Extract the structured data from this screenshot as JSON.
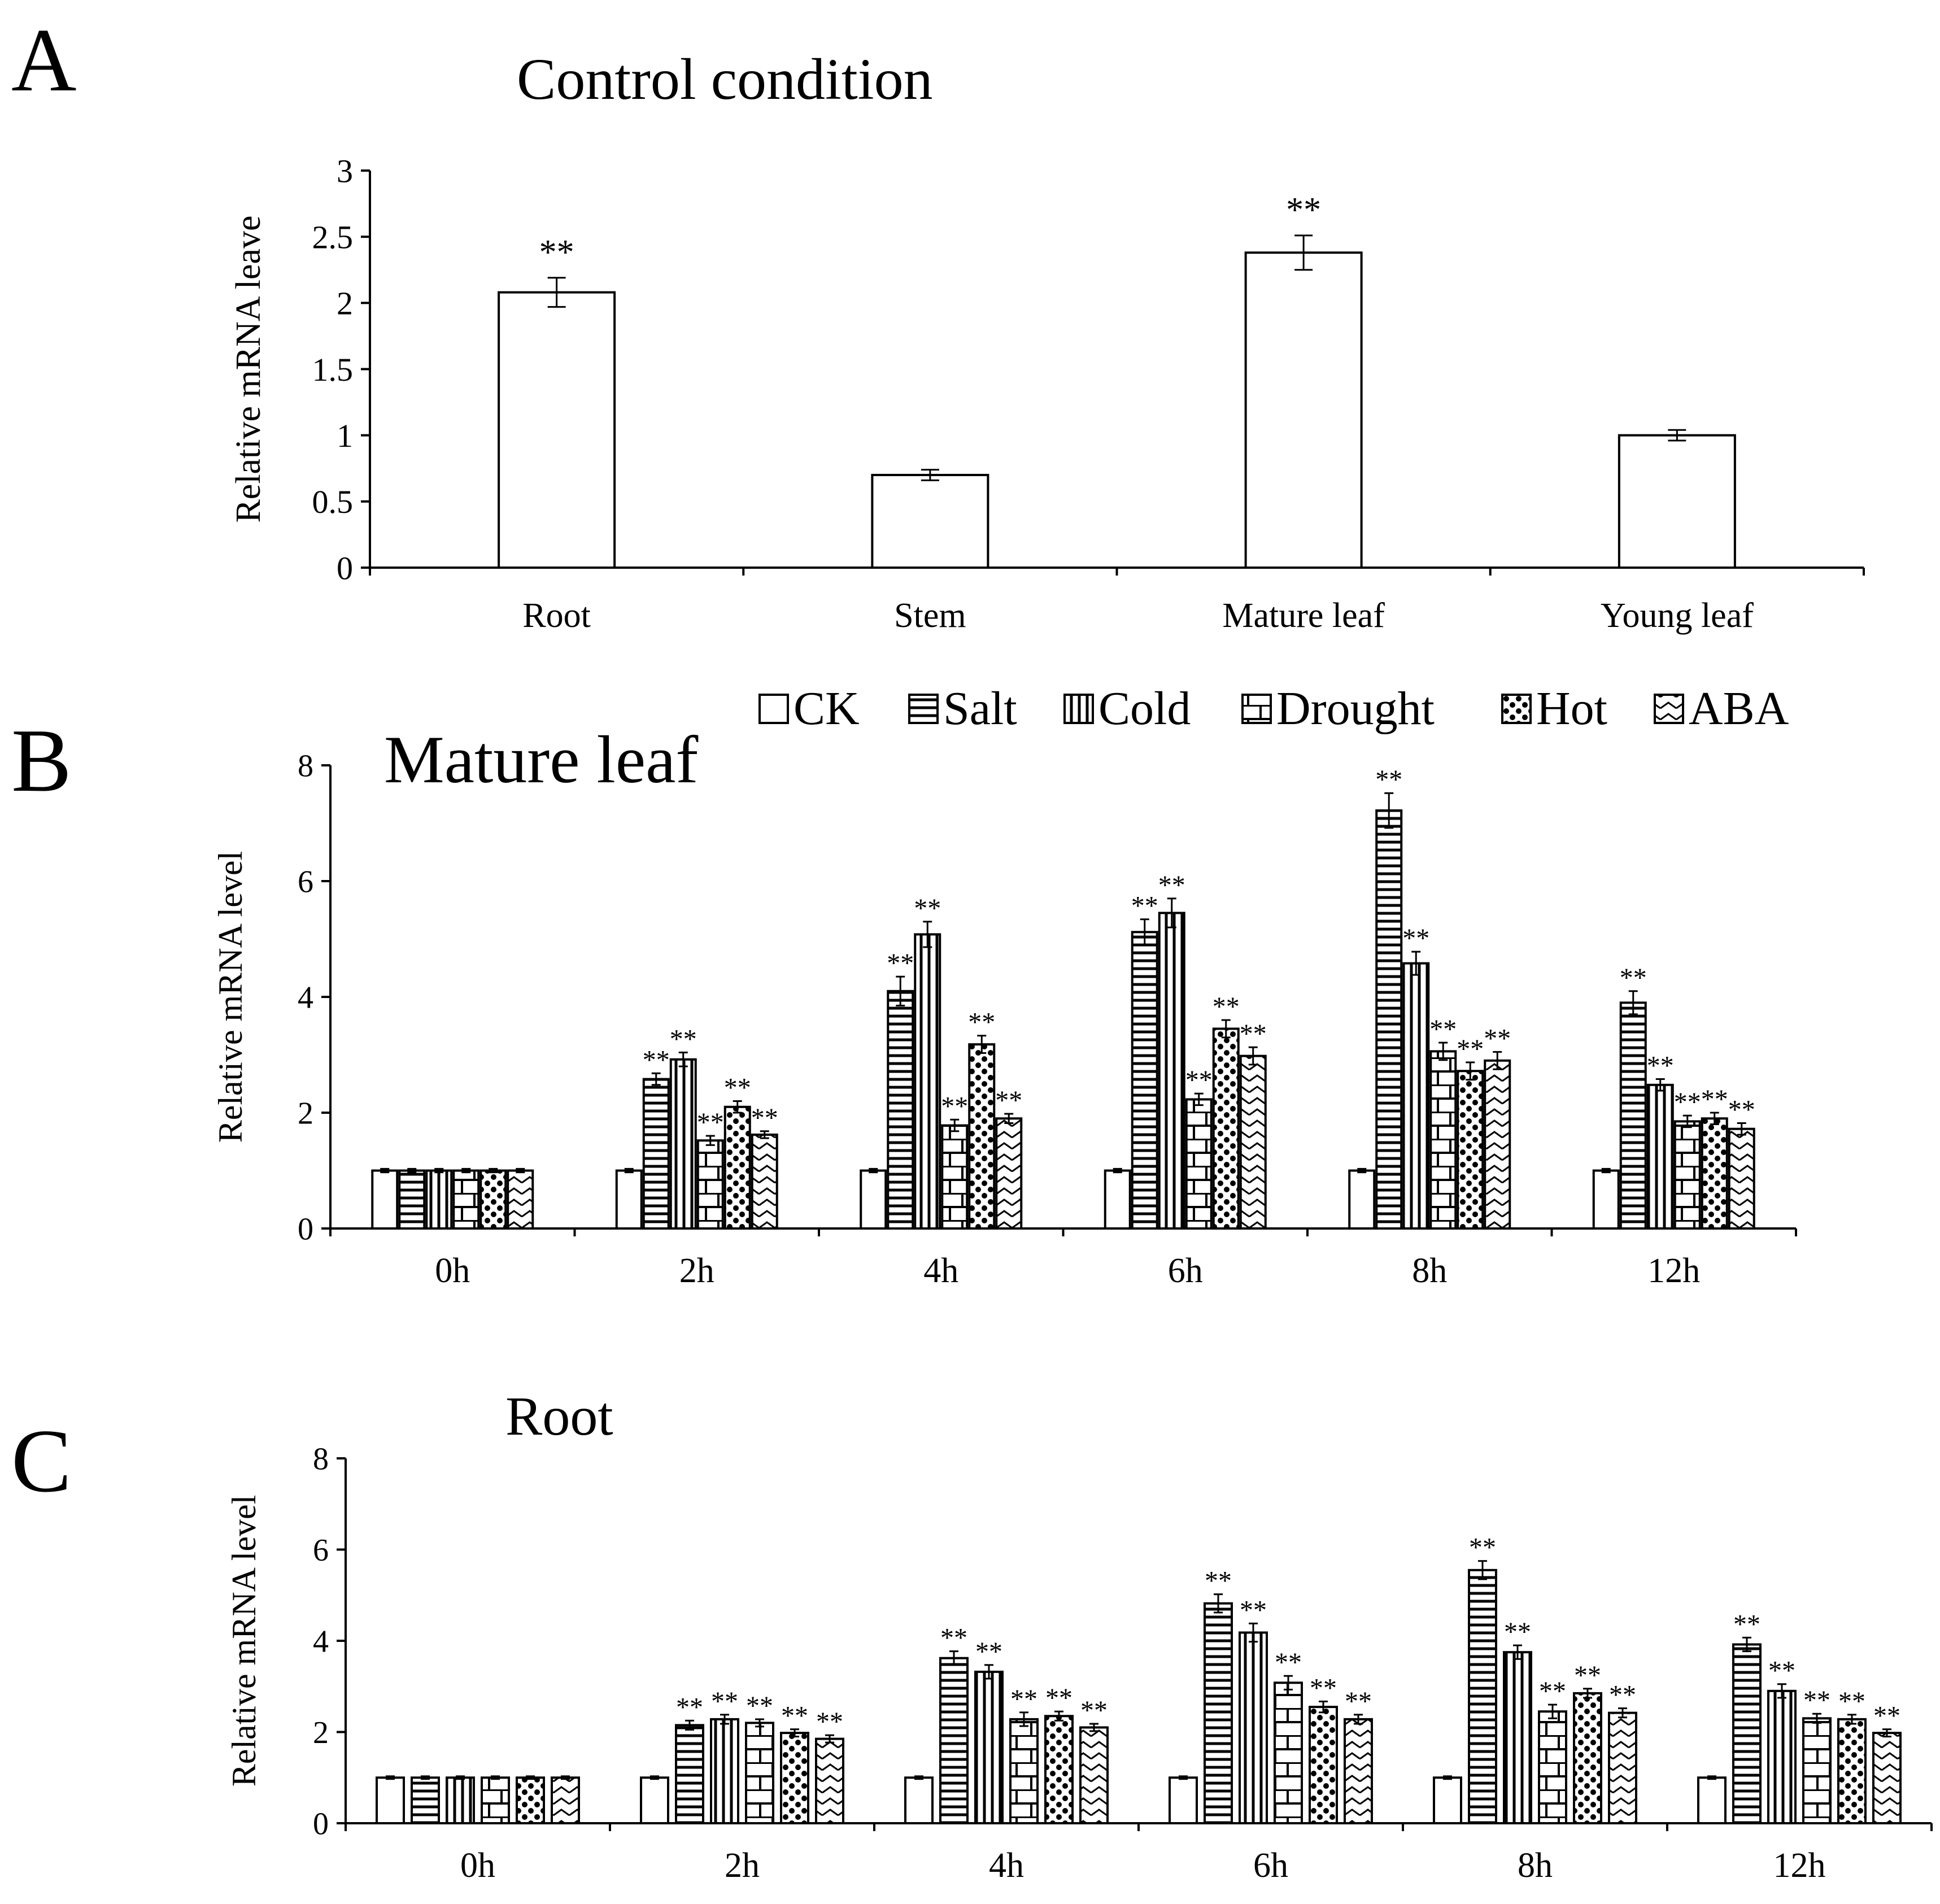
{
  "chart_data": [
    {
      "panel": "A",
      "type": "bar",
      "title": "Control condition",
      "ylabel": "Relative mRNA leave",
      "xlabel": "",
      "ylim": [
        0,
        3
      ],
      "yticks": [
        "0",
        "0.5",
        "1",
        "1.5",
        "2",
        "2.5",
        "3"
      ],
      "categories": [
        "Root",
        "Stem",
        "Mature leaf",
        "Young leaf"
      ],
      "values": [
        2.08,
        0.7,
        2.38,
        1.0
      ],
      "errors": [
        0.11,
        0.04,
        0.13,
        0.04
      ],
      "significance": [
        "**",
        "",
        "**",
        ""
      ]
    },
    {
      "panel": "B",
      "type": "bar",
      "title": "Mature leaf",
      "ylabel": "Relative mRNA level",
      "xlabel": "",
      "ylim": [
        0,
        8
      ],
      "yticks": [
        "0",
        "2",
        "4",
        "6",
        "8"
      ],
      "categories": [
        "0h",
        "2h",
        "4h",
        "6h",
        "8h",
        "12h"
      ],
      "legend_position": "top",
      "series": [
        {
          "name": "CK",
          "pattern": "plain",
          "values": [
            1,
            1,
            1,
            1,
            1,
            1
          ],
          "errors": [
            0.03,
            0.03,
            0.03,
            0.03,
            0.03,
            0.03
          ],
          "significance": [
            "",
            "",
            "",
            "",
            "",
            ""
          ]
        },
        {
          "name": "Salt",
          "pattern": "hlines",
          "values": [
            1,
            2.58,
            4.1,
            5.12,
            7.22,
            3.9
          ],
          "errors": [
            0.03,
            0.1,
            0.25,
            0.22,
            0.3,
            0.2
          ],
          "significance": [
            "",
            "**",
            "**",
            "**",
            "**",
            "**"
          ]
        },
        {
          "name": "Cold",
          "pattern": "vlines",
          "values": [
            1,
            2.92,
            5.08,
            5.45,
            4.58,
            2.48
          ],
          "errors": [
            0.03,
            0.12,
            0.22,
            0.25,
            0.2,
            0.1
          ],
          "significance": [
            "",
            "**",
            "**",
            "**",
            "**",
            "**"
          ]
        },
        {
          "name": "Drought",
          "pattern": "brick",
          "values": [
            1,
            1.52,
            1.78,
            2.23,
            3.06,
            1.85
          ],
          "errors": [
            0.03,
            0.08,
            0.1,
            0.1,
            0.15,
            0.1
          ],
          "significance": [
            "",
            "**",
            "**",
            "**",
            "**",
            "**"
          ]
        },
        {
          "name": "Hot",
          "pattern": "dots",
          "values": [
            1,
            2.1,
            3.18,
            3.45,
            2.72,
            1.9
          ],
          "errors": [
            0.03,
            0.1,
            0.15,
            0.15,
            0.15,
            0.1
          ],
          "significance": [
            "",
            "**",
            "**",
            "**",
            "**",
            "**"
          ]
        },
        {
          "name": "ABA",
          "pattern": "zigzag",
          "values": [
            1,
            1.62,
            1.9,
            2.98,
            2.9,
            1.72
          ],
          "errors": [
            0.03,
            0.06,
            0.08,
            0.15,
            0.15,
            0.1
          ],
          "significance": [
            "",
            "**",
            "**",
            "**",
            "**",
            "**"
          ]
        }
      ]
    },
    {
      "panel": "C",
      "type": "bar",
      "title": "Root",
      "ylabel": "Relative mRNA level",
      "xlabel": "",
      "ylim": [
        0,
        8
      ],
      "yticks": [
        "0",
        "2",
        "4",
        "6",
        "8"
      ],
      "categories": [
        "0h",
        "2h",
        "4h",
        "6h",
        "8h",
        "12h"
      ],
      "series": [
        {
          "name": "CK",
          "pattern": "plain",
          "values": [
            1,
            1,
            1,
            1,
            1,
            1
          ],
          "errors": [
            0.03,
            0.03,
            0.03,
            0.03,
            0.03,
            0.03
          ],
          "significance": [
            "",
            "",
            "",
            "",
            "",
            ""
          ]
        },
        {
          "name": "Salt",
          "pattern": "hlines",
          "values": [
            1,
            2.15,
            3.62,
            4.82,
            5.55,
            3.92
          ],
          "errors": [
            0.03,
            0.1,
            0.15,
            0.2,
            0.2,
            0.15
          ],
          "significance": [
            "",
            "**",
            "**",
            "**",
            "**",
            "**"
          ]
        },
        {
          "name": "Cold",
          "pattern": "vlines",
          "values": [
            1,
            2.28,
            3.32,
            4.18,
            3.75,
            2.9
          ],
          "errors": [
            0.03,
            0.1,
            0.15,
            0.2,
            0.15,
            0.15
          ],
          "significance": [
            "",
            "**",
            "**",
            "**",
            "**",
            "**"
          ]
        },
        {
          "name": "Drought",
          "pattern": "brick",
          "values": [
            1,
            2.2,
            2.28,
            3.08,
            2.45,
            2.3
          ],
          "errors": [
            0.03,
            0.08,
            0.15,
            0.15,
            0.15,
            0.1
          ],
          "significance": [
            "",
            "**",
            "**",
            "**",
            "**",
            "**"
          ]
        },
        {
          "name": "Hot",
          "pattern": "dots",
          "values": [
            1,
            1.98,
            2.35,
            2.55,
            2.85,
            2.28
          ],
          "errors": [
            0.03,
            0.08,
            0.1,
            0.12,
            0.1,
            0.1
          ],
          "significance": [
            "",
            "**",
            "**",
            "**",
            "**",
            "**"
          ]
        },
        {
          "name": "ABA",
          "pattern": "zigzag",
          "values": [
            1,
            1.85,
            2.1,
            2.28,
            2.42,
            1.98
          ],
          "errors": [
            0.03,
            0.08,
            0.08,
            0.1,
            0.1,
            0.08
          ],
          "significance": [
            "",
            "**",
            "**",
            "**",
            "**",
            "**"
          ]
        }
      ]
    }
  ],
  "panel_letters": [
    "A",
    "B",
    "C"
  ],
  "legend": [
    "CK",
    "Salt",
    "Cold",
    "Drought",
    "Hot",
    "ABA"
  ]
}
